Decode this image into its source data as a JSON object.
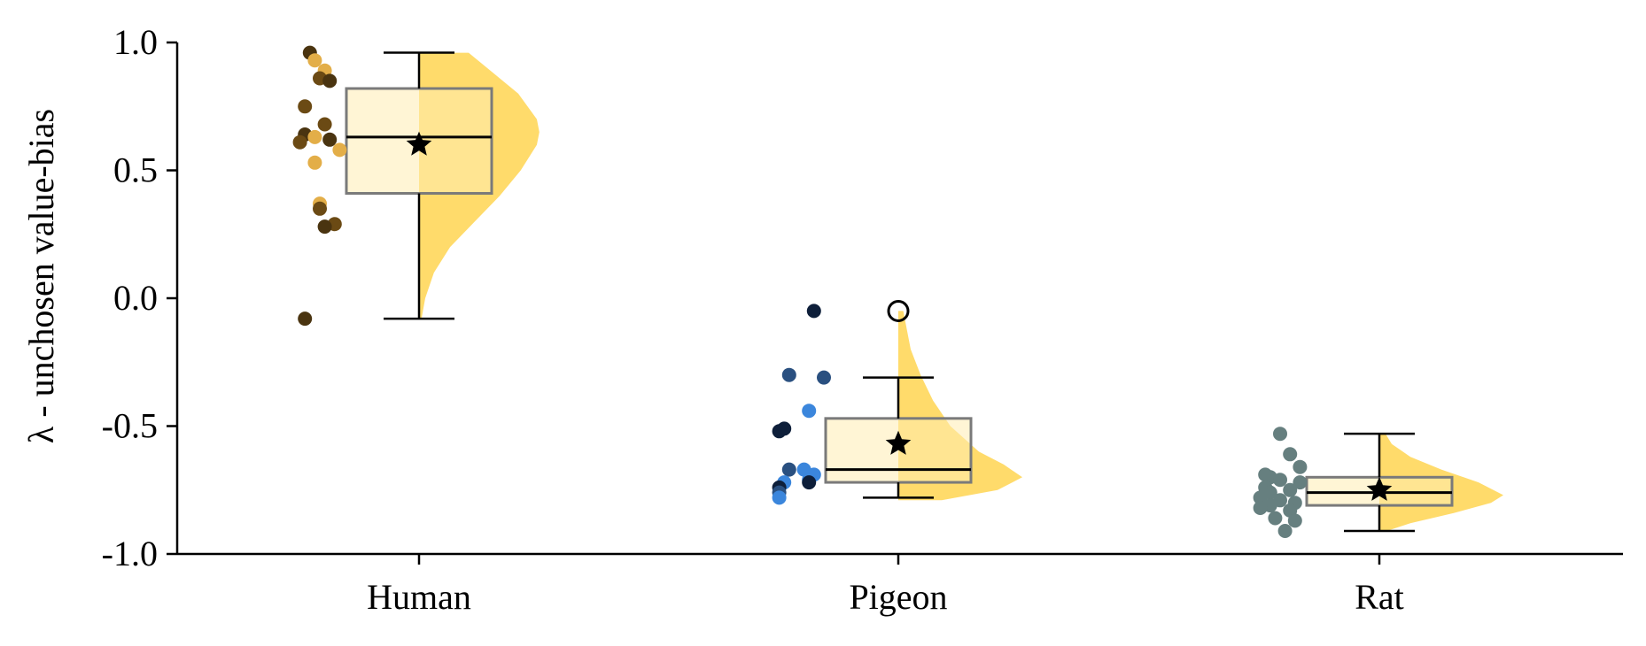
{
  "chart_data": {
    "type": "raincloud",
    "title": "",
    "xlabel": "",
    "ylabel": "λ - unchosen value-bias",
    "ylim": [
      -1.0,
      1.0
    ],
    "yticks": [
      1.0,
      0.5,
      0.0,
      -0.5,
      -1.0
    ],
    "ytick_labels": [
      "1.0",
      "0.5",
      "0.0",
      "-0.5",
      "-1.0"
    ],
    "categories": [
      "Human",
      "Pigeon",
      "Rat"
    ],
    "grid": false,
    "legend": "none",
    "colors": {
      "violin": "#FFDB6B",
      "box_fill": "#FFECB3",
      "box_edge": "#7A7A7A",
      "mean_marker": "#000000"
    },
    "groups": [
      {
        "name": "Human",
        "box": {
          "q1": 0.41,
          "median": 0.63,
          "q3": 0.82,
          "whisker_low": -0.08,
          "whisker_high": 0.96
        },
        "mean": 0.6,
        "outliers": [],
        "density": [
          [
            -0.08,
            0.02
          ],
          [
            0.0,
            0.05
          ],
          [
            0.1,
            0.12
          ],
          [
            0.2,
            0.25
          ],
          [
            0.3,
            0.45
          ],
          [
            0.4,
            0.65
          ],
          [
            0.5,
            0.82
          ],
          [
            0.6,
            0.95
          ],
          [
            0.65,
            0.97
          ],
          [
            0.7,
            0.95
          ],
          [
            0.8,
            0.8
          ],
          [
            0.9,
            0.55
          ],
          [
            0.96,
            0.4
          ]
        ],
        "points": [
          {
            "y": 0.96,
            "dx": -0.22,
            "color": "#4A3410"
          },
          {
            "y": 0.93,
            "dx": -0.21,
            "color": "#E3AE48"
          },
          {
            "y": 0.89,
            "dx": -0.19,
            "color": "#E3AE48"
          },
          {
            "y": 0.86,
            "dx": -0.2,
            "color": "#6B4A14"
          },
          {
            "y": 0.85,
            "dx": -0.18,
            "color": "#4A3410"
          },
          {
            "y": 0.75,
            "dx": -0.23,
            "color": "#6B4A14"
          },
          {
            "y": 0.68,
            "dx": -0.19,
            "color": "#6B4A14"
          },
          {
            "y": 0.64,
            "dx": -0.23,
            "color": "#4A3410"
          },
          {
            "y": 0.63,
            "dx": -0.21,
            "color": "#E3AE48"
          },
          {
            "y": 0.62,
            "dx": -0.18,
            "color": "#4A3410"
          },
          {
            "y": 0.61,
            "dx": -0.24,
            "color": "#6B4A14"
          },
          {
            "y": 0.58,
            "dx": -0.16,
            "color": "#E3AE48"
          },
          {
            "y": 0.53,
            "dx": -0.21,
            "color": "#E3AE48"
          },
          {
            "y": 0.37,
            "dx": -0.2,
            "color": "#E3AE48"
          },
          {
            "y": 0.35,
            "dx": -0.2,
            "color": "#6B4A14"
          },
          {
            "y": 0.29,
            "dx": -0.17,
            "color": "#6B4A14"
          },
          {
            "y": 0.28,
            "dx": -0.19,
            "color": "#4A3410"
          },
          {
            "y": -0.08,
            "dx": -0.23,
            "color": "#4A3410"
          }
        ]
      },
      {
        "name": "Pigeon",
        "box": {
          "q1": -0.72,
          "median": -0.67,
          "q3": -0.47,
          "whisker_low": -0.78,
          "whisker_high": -0.31
        },
        "mean": -0.57,
        "outliers": [
          -0.05
        ],
        "density": [
          [
            -0.79,
            0.35
          ],
          [
            -0.75,
            0.8
          ],
          [
            -0.7,
            1.0
          ],
          [
            -0.65,
            0.85
          ],
          [
            -0.6,
            0.65
          ],
          [
            -0.5,
            0.42
          ],
          [
            -0.4,
            0.28
          ],
          [
            -0.3,
            0.18
          ],
          [
            -0.2,
            0.1
          ],
          [
            -0.1,
            0.06
          ],
          [
            -0.05,
            0.04
          ]
        ],
        "points": [
          {
            "y": -0.05,
            "dx": -0.17,
            "color": "#0E1F3A"
          },
          {
            "y": -0.3,
            "dx": -0.22,
            "color": "#2A5080"
          },
          {
            "y": -0.31,
            "dx": -0.15,
            "color": "#2A5080"
          },
          {
            "y": -0.44,
            "dx": -0.18,
            "color": "#3B86DC"
          },
          {
            "y": -0.51,
            "dx": -0.23,
            "color": "#0E1F3A"
          },
          {
            "y": -0.52,
            "dx": -0.24,
            "color": "#0E1F3A"
          },
          {
            "y": -0.67,
            "dx": -0.22,
            "color": "#2A5080"
          },
          {
            "y": -0.67,
            "dx": -0.19,
            "color": "#3B86DC"
          },
          {
            "y": -0.69,
            "dx": -0.17,
            "color": "#3B86DC"
          },
          {
            "y": -0.71,
            "dx": -0.18,
            "color": "#3B86DC"
          },
          {
            "y": -0.72,
            "dx": -0.18,
            "color": "#0E1F3A"
          },
          {
            "y": -0.72,
            "dx": -0.23,
            "color": "#3B86DC"
          },
          {
            "y": -0.74,
            "dx": -0.24,
            "color": "#0E1F3A"
          },
          {
            "y": -0.76,
            "dx": -0.24,
            "color": "#2A5080"
          },
          {
            "y": -0.78,
            "dx": -0.24,
            "color": "#3B86DC"
          }
        ]
      },
      {
        "name": "Rat",
        "box": {
          "q1": -0.81,
          "median": -0.76,
          "q3": -0.7,
          "whisker_low": -0.91,
          "whisker_high": -0.53
        },
        "mean": -0.75,
        "outliers": [],
        "density": [
          [
            -0.91,
            0.06
          ],
          [
            -0.88,
            0.25
          ],
          [
            -0.84,
            0.6
          ],
          [
            -0.8,
            0.9
          ],
          [
            -0.77,
            1.0
          ],
          [
            -0.72,
            0.8
          ],
          [
            -0.67,
            0.5
          ],
          [
            -0.62,
            0.25
          ],
          [
            -0.57,
            0.1
          ],
          [
            -0.53,
            0.05
          ]
        ],
        "points": [
          {
            "y": -0.53,
            "dx": -0.2,
            "color": "#667F7F"
          },
          {
            "y": -0.61,
            "dx": -0.18,
            "color": "#667F7F"
          },
          {
            "y": -0.66,
            "dx": -0.16,
            "color": "#667F7F"
          },
          {
            "y": -0.69,
            "dx": -0.23,
            "color": "#667F7F"
          },
          {
            "y": -0.7,
            "dx": -0.22,
            "color": "#667F7F"
          },
          {
            "y": -0.71,
            "dx": -0.2,
            "color": "#667F7F"
          },
          {
            "y": -0.72,
            "dx": -0.16,
            "color": "#667F7F"
          },
          {
            "y": -0.74,
            "dx": -0.23,
            "color": "#667F7F"
          },
          {
            "y": -0.75,
            "dx": -0.18,
            "color": "#667F7F"
          },
          {
            "y": -0.76,
            "dx": -0.22,
            "color": "#667F7F"
          },
          {
            "y": -0.78,
            "dx": -0.24,
            "color": "#667F7F"
          },
          {
            "y": -0.79,
            "dx": -0.2,
            "color": "#667F7F"
          },
          {
            "y": -0.8,
            "dx": -0.17,
            "color": "#667F7F"
          },
          {
            "y": -0.81,
            "dx": -0.22,
            "color": "#667F7F"
          },
          {
            "y": -0.82,
            "dx": -0.24,
            "color": "#667F7F"
          },
          {
            "y": -0.83,
            "dx": -0.18,
            "color": "#667F7F"
          },
          {
            "y": -0.86,
            "dx": -0.21,
            "color": "#667F7F"
          },
          {
            "y": -0.87,
            "dx": -0.17,
            "color": "#667F7F"
          },
          {
            "y": -0.91,
            "dx": -0.19,
            "color": "#667F7F"
          }
        ]
      }
    ]
  }
}
